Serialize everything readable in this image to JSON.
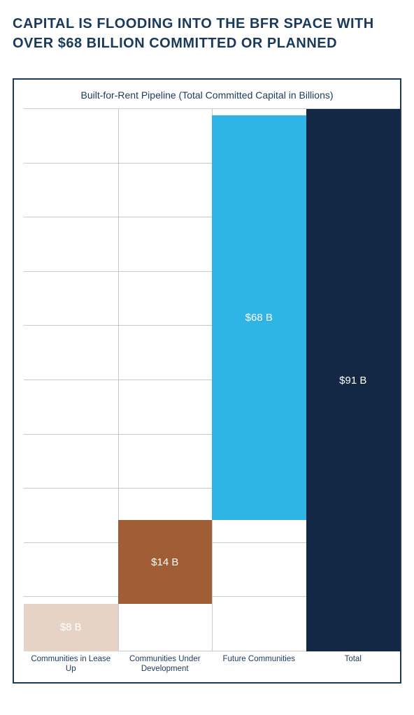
{
  "heading": "CAPITAL IS FLOODING INTO THE BFR SPACE WITH OVER $68 BILLION COMMITTED OR PLANNED",
  "chart": {
    "type": "waterfall-bar",
    "title": "Built-for-Rent Pipeline (Total Committed Capital in Billions)",
    "background_color": "#ffffff",
    "border_color": "#1a3a5c",
    "grid_color": "#c9c9c9",
    "heading_color": "#1a3a5c",
    "xlabel_color": "#1a3a5c",
    "xlabel_fontsize": 11.5,
    "title_fontsize": 14,
    "heading_fontsize": 20,
    "bar_label_fontsize": 15,
    "bar_label_color": "#ffffff",
    "ylim": [
      0,
      91
    ],
    "grid_h_count": 10,
    "grid_v_count": 3,
    "categories": [
      "Communities in Lease Up",
      "Communities Under Development",
      "Future Communities",
      "Total"
    ],
    "bars": [
      {
        "label": "$8 B",
        "value": 8,
        "base": 0,
        "top": 8,
        "color": "#e7d3c6"
      },
      {
        "label": "$14 B",
        "value": 14,
        "base": 8,
        "top": 22,
        "color": "#a15d35"
      },
      {
        "label": "$68 B",
        "value": 68,
        "base": 22,
        "top": 90,
        "color": "#2fb4e6"
      },
      {
        "label": "$91 B",
        "value": 91,
        "base": 0,
        "top": 91,
        "color": "#132845"
      }
    ]
  }
}
